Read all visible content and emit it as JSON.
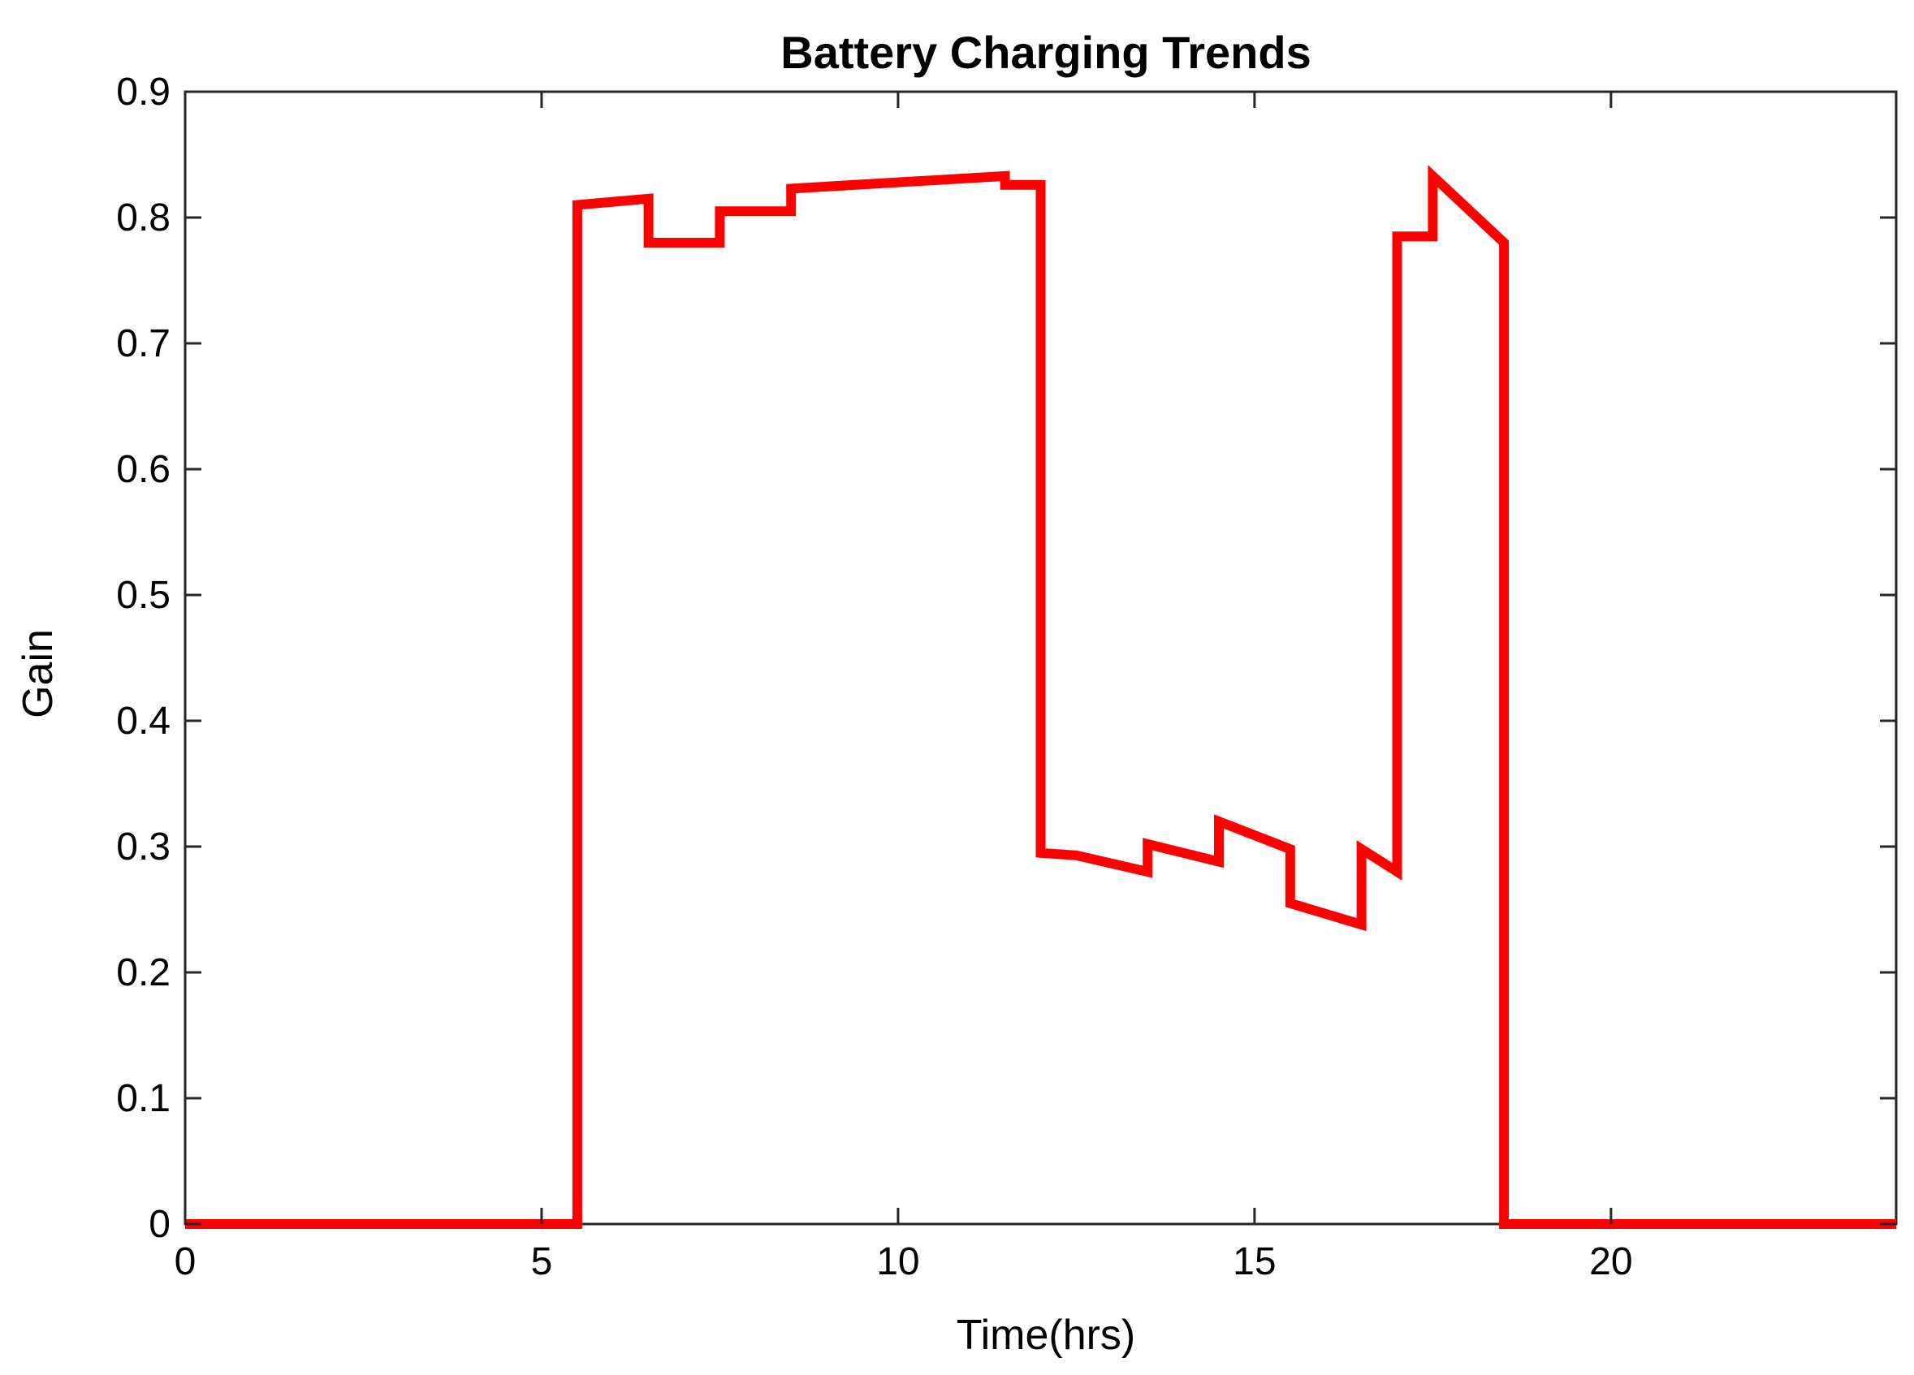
{
  "chart_data": {
    "type": "line",
    "title": "Battery Charging Trends",
    "xlabel": "Time(hrs)",
    "ylabel": "Gain",
    "xlim": [
      0,
      24
    ],
    "ylim": [
      0,
      0.9
    ],
    "xticks": [
      0,
      5,
      10,
      15,
      20
    ],
    "xtick_labels": [
      "0",
      "5",
      "10",
      "15",
      "20"
    ],
    "yticks": [
      0,
      0.1,
      0.2,
      0.3,
      0.4,
      0.5,
      0.6,
      0.7,
      0.8,
      0.9
    ],
    "ytick_labels": [
      "0",
      "0.1",
      "0.2",
      "0.3",
      "0.4",
      "0.5",
      "0.6",
      "0.7",
      "0.8",
      "0.9"
    ],
    "grid": false,
    "series": [
      {
        "color": "#ff0000",
        "x": [
          0,
          5.5,
          5.5,
          6.5,
          6.5,
          7.5,
          7.5,
          8.5,
          8.5,
          11.5,
          11.5,
          12.0,
          12.0,
          12.5,
          13.5,
          13.5,
          14.5,
          14.5,
          15.5,
          15.5,
          16.5,
          16.5,
          17.0,
          17.0,
          17.5,
          17.5,
          18.5,
          18.5,
          24
        ],
        "y": [
          0,
          0,
          0.81,
          0.815,
          0.78,
          0.78,
          0.805,
          0.805,
          0.823,
          0.833,
          0.826,
          0.826,
          0.295,
          0.293,
          0.28,
          0.302,
          0.288,
          0.32,
          0.298,
          0.255,
          0.238,
          0.298,
          0.28,
          0.785,
          0.785,
          0.833,
          0.78,
          0,
          0
        ]
      }
    ]
  }
}
